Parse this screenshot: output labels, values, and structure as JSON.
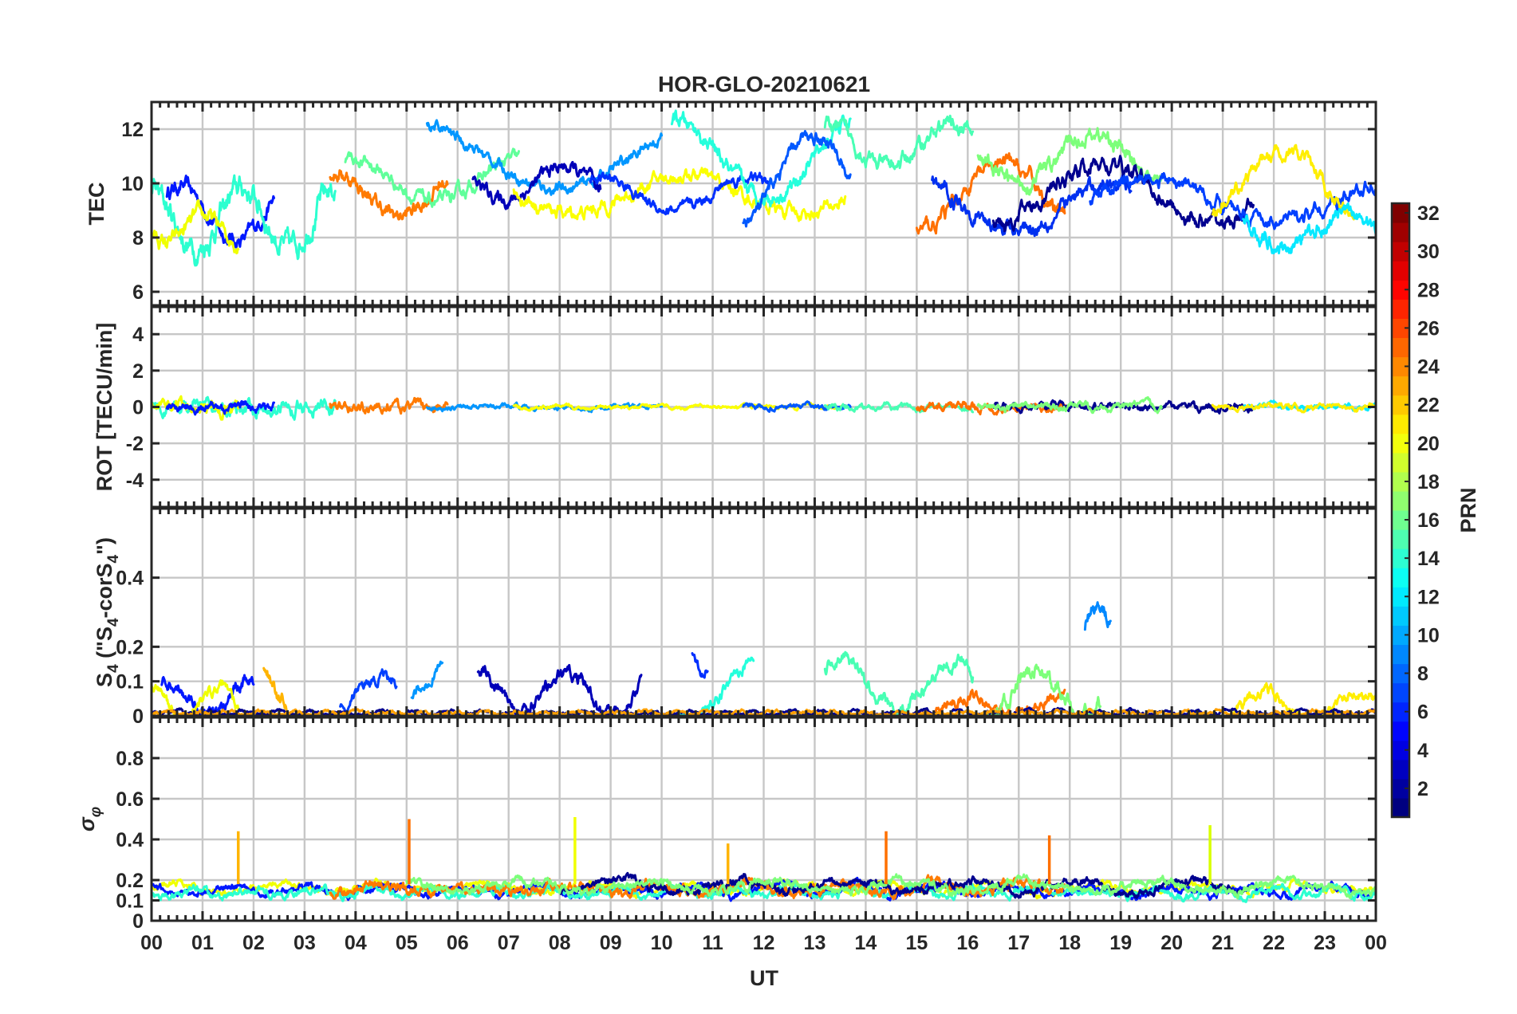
{
  "chart_data": {
    "type": "line",
    "title": "HOR-GLO-20210621",
    "xlabel": "UT",
    "x_range": [
      0,
      24
    ],
    "x_tick_labels": [
      "00",
      "01",
      "02",
      "03",
      "04",
      "05",
      "06",
      "07",
      "08",
      "09",
      "10",
      "11",
      "12",
      "13",
      "14",
      "15",
      "16",
      "17",
      "18",
      "19",
      "20",
      "21",
      "22",
      "23",
      "00"
    ],
    "colorbar": {
      "label": "PRN",
      "range": [
        1,
        32
      ],
      "tick_labels": [
        "2",
        "4",
        "6",
        "8",
        "10",
        "12",
        "14",
        "16",
        "18",
        "20",
        "22",
        "24",
        "26",
        "28",
        "30",
        "32"
      ],
      "colormap": "jet"
    },
    "panels": [
      {
        "id": "tec",
        "ylabel": "TEC",
        "ylim": [
          5.5,
          13
        ],
        "y_ticks": [
          6,
          8,
          10,
          12
        ],
        "y_tick_labels": [
          "6",
          "8",
          "10",
          "12"
        ],
        "series": [
          {
            "prn": 3,
            "color": "#0018ff",
            "t_start": 0.3,
            "t_end": 2.4,
            "base": 8.9,
            "amp": 1.0,
            "noise": 0.35,
            "freq": 0.9
          },
          {
            "prn": 14,
            "color": "#2cffd0",
            "t_start": 0.0,
            "t_end": 3.6,
            "base": 8.7,
            "amp": 1.1,
            "noise": 0.55,
            "freq": 1.1
          },
          {
            "prn": 20,
            "color": "#f0ff00",
            "t_start": 0.0,
            "t_end": 1.7,
            "base": 8.3,
            "amp": 0.5,
            "noise": 0.35,
            "freq": 1.4
          },
          {
            "prn": 24,
            "color": "#ff7a00",
            "t_start": 3.5,
            "t_end": 5.8,
            "base": 9.6,
            "amp": 0.8,
            "noise": 0.35,
            "freq": 0.8
          },
          {
            "prn": 16,
            "color": "#60ff9a",
            "t_start": 3.8,
            "t_end": 7.2,
            "base": 10.1,
            "amp": 0.8,
            "noise": 0.3,
            "freq": 0.6
          },
          {
            "prn": 9,
            "color": "#0096ff",
            "t_start": 5.4,
            "t_end": 10.0,
            "base": 11.0,
            "amp": 1.2,
            "noise": 0.25,
            "freq": 0.35
          },
          {
            "prn": 2,
            "color": "#0000b8",
            "t_start": 6.3,
            "t_end": 8.8,
            "base": 10.0,
            "amp": 0.6,
            "noise": 0.3,
            "freq": 0.9
          },
          {
            "prn": 19,
            "color": "#fbff00",
            "t_start": 7.1,
            "t_end": 13.6,
            "base": 9.6,
            "amp": 0.7,
            "noise": 0.3,
            "freq": 0.45
          },
          {
            "prn": 5,
            "color": "#0030ff",
            "t_start": 8.6,
            "t_end": 12.1,
            "base": 9.6,
            "amp": 0.6,
            "noise": 0.25,
            "freq": 0.7
          },
          {
            "prn": 13,
            "color": "#24ffdc",
            "t_start": 10.2,
            "t_end": 13.7,
            "base": 10.9,
            "amp": 1.4,
            "noise": 0.35,
            "freq": 0.55
          },
          {
            "prn": 7,
            "color": "#0058ff",
            "t_start": 11.6,
            "t_end": 13.7,
            "base": 10.2,
            "amp": 1.6,
            "noise": 0.3,
            "freq": 0.7
          },
          {
            "prn": 15,
            "color": "#48ffb4",
            "t_start": 13.2,
            "t_end": 16.1,
            "base": 11.4,
            "amp": 0.8,
            "noise": 0.35,
            "freq": 0.8
          },
          {
            "prn": 24,
            "color": "#ff7000",
            "t_start": 15.0,
            "t_end": 17.9,
            "base": 9.5,
            "amp": 1.2,
            "noise": 0.35,
            "freq": 0.6
          },
          {
            "prn": 4,
            "color": "#0030f0",
            "t_start": 15.3,
            "t_end": 19.2,
            "base": 9.2,
            "amp": 0.9,
            "noise": 0.35,
            "freq": 0.5
          },
          {
            "prn": 17,
            "color": "#7cff7a",
            "t_start": 16.2,
            "t_end": 19.8,
            "base": 10.9,
            "amp": 0.9,
            "noise": 0.35,
            "freq": 0.7
          },
          {
            "prn": 1,
            "color": "#00008f",
            "t_start": 16.5,
            "t_end": 21.6,
            "base": 9.6,
            "amp": 1.1,
            "noise": 0.35,
            "freq": 0.45
          },
          {
            "prn": 6,
            "color": "#0040ff",
            "t_start": 18.4,
            "t_end": 24.0,
            "base": 9.4,
            "amp": 0.8,
            "noise": 0.3,
            "freq": 0.4
          },
          {
            "prn": 20,
            "color": "#ffee00",
            "t_start": 20.8,
            "t_end": 23.6,
            "base": 9.9,
            "amp": 1.3,
            "noise": 0.3,
            "freq": 0.6
          },
          {
            "prn": 12,
            "color": "#08e8ff",
            "t_start": 21.4,
            "t_end": 24.0,
            "base": 8.3,
            "amp": 0.6,
            "noise": 0.35,
            "freq": 0.8
          }
        ]
      },
      {
        "id": "rot",
        "ylabel": "ROT [TECU/min]",
        "ylim": [
          -5.5,
          5.5
        ],
        "y_ticks": [
          -4,
          -2,
          0,
          2,
          4
        ],
        "y_tick_labels": [
          "-4",
          "-2",
          "0",
          "2",
          "4"
        ],
        "series": [
          {
            "prn": 14,
            "color": "#2cffd0",
            "t_start": 0.0,
            "t_end": 3.6,
            "base": 0.0,
            "amp": 0.05,
            "noise": 0.45,
            "freq": 2.0
          },
          {
            "prn": 20,
            "color": "#f0ff00",
            "t_start": 0.0,
            "t_end": 1.7,
            "base": 0.0,
            "amp": 0.05,
            "noise": 0.45,
            "freq": 2.0
          },
          {
            "prn": 3,
            "color": "#0018ff",
            "t_start": 0.3,
            "t_end": 2.4,
            "base": 0.0,
            "amp": 0.05,
            "noise": 0.3,
            "freq": 2.0
          },
          {
            "prn": 24,
            "color": "#ff7a00",
            "t_start": 3.5,
            "t_end": 5.8,
            "base": 0.0,
            "amp": 0.05,
            "noise": 0.35,
            "freq": 2.0
          },
          {
            "prn": 9,
            "color": "#0096ff",
            "t_start": 5.4,
            "t_end": 10.0,
            "base": 0.0,
            "amp": 0.05,
            "noise": 0.15,
            "freq": 2.0
          },
          {
            "prn": 19,
            "color": "#fbff00",
            "t_start": 7.1,
            "t_end": 13.6,
            "base": 0.0,
            "amp": 0.05,
            "noise": 0.12,
            "freq": 2.0
          },
          {
            "prn": 7,
            "color": "#0058ff",
            "t_start": 11.6,
            "t_end": 13.7,
            "base": 0.0,
            "amp": 0.05,
            "noise": 0.18,
            "freq": 2.0
          },
          {
            "prn": 15,
            "color": "#48ffb4",
            "t_start": 13.2,
            "t_end": 16.1,
            "base": 0.0,
            "amp": 0.05,
            "noise": 0.2,
            "freq": 2.0
          },
          {
            "prn": 24,
            "color": "#ff7000",
            "t_start": 15.0,
            "t_end": 17.9,
            "base": 0.0,
            "amp": 0.05,
            "noise": 0.25,
            "freq": 2.0
          },
          {
            "prn": 1,
            "color": "#00008f",
            "t_start": 16.5,
            "t_end": 21.6,
            "base": 0.0,
            "amp": 0.05,
            "noise": 0.25,
            "freq": 2.0
          },
          {
            "prn": 17,
            "color": "#7cff7a",
            "t_start": 16.2,
            "t_end": 19.8,
            "base": 0.0,
            "amp": 0.05,
            "noise": 0.25,
            "freq": 2.0
          },
          {
            "prn": 12,
            "color": "#08e8ff",
            "t_start": 21.4,
            "t_end": 24.0,
            "base": 0.0,
            "amp": 0.05,
            "noise": 0.18,
            "freq": 2.0
          },
          {
            "prn": 20,
            "color": "#ffee00",
            "t_start": 20.8,
            "t_end": 24.0,
            "base": 0.0,
            "amp": 0.05,
            "noise": 0.18,
            "freq": 2.0
          }
        ]
      },
      {
        "id": "s4",
        "ylabel": "S4 (\"S4-corS4\")",
        "ylim": [
          0,
          0.6
        ],
        "y_ticks": [
          0,
          0.1,
          0.2,
          0.4
        ],
        "y_tick_labels": [
          "0",
          "0.1",
          "0.2",
          "0.4"
        ],
        "series": [
          {
            "prn": 3,
            "color": "#0018ff",
            "t_start": 0.2,
            "t_end": 2.0,
            "base": 0.05,
            "amp": 0.05,
            "noise": 0.025,
            "freq": 1.3
          },
          {
            "prn": 20,
            "color": "#f0ff00",
            "t_start": 0.0,
            "t_end": 1.7,
            "base": 0.04,
            "amp": 0.04,
            "noise": 0.02,
            "freq": 1.5
          },
          {
            "prn": 22,
            "color": "#ffb400",
            "t_start": 2.2,
            "t_end": 2.9,
            "base": 0.07,
            "amp": 0.08,
            "noise": 0.03,
            "freq": 1.6
          },
          {
            "prn": 6,
            "color": "#0040ff",
            "t_start": 3.7,
            "t_end": 4.8,
            "base": 0.06,
            "amp": 0.05,
            "noise": 0.02,
            "freq": 1.1
          },
          {
            "prn": 9,
            "color": "#0096ff",
            "t_start": 5.1,
            "t_end": 5.7,
            "base": 0.12,
            "amp": 0.1,
            "noise": 0.02,
            "freq": 0.7
          },
          {
            "prn": 2,
            "color": "#0000b8",
            "t_start": 6.4,
            "t_end": 9.6,
            "base": 0.07,
            "amp": 0.05,
            "noise": 0.025,
            "freq": 1.2
          },
          {
            "prn": 13,
            "color": "#24ffdc",
            "t_start": 10.2,
            "t_end": 11.8,
            "base": 0.08,
            "amp": 0.1,
            "noise": 0.02,
            "freq": 0.6
          },
          {
            "prn": 5,
            "color": "#0030ff",
            "t_start": 10.6,
            "t_end": 10.9,
            "base": 0.18,
            "amp": 0.06,
            "noise": 0.02,
            "freq": 2.0
          },
          {
            "prn": 15,
            "color": "#48ffb4",
            "t_start": 13.2,
            "t_end": 16.1,
            "base": 0.09,
            "amp": 0.07,
            "noise": 0.025,
            "freq": 0.9
          },
          {
            "prn": 24,
            "color": "#ff7000",
            "t_start": 15.0,
            "t_end": 17.9,
            "base": 0.03,
            "amp": 0.03,
            "noise": 0.02,
            "freq": 1.1
          },
          {
            "prn": 17,
            "color": "#7cff7a",
            "t_start": 16.2,
            "t_end": 18.6,
            "base": 0.06,
            "amp": 0.07,
            "noise": 0.03,
            "freq": 1.1
          },
          {
            "prn": 10,
            "color": "#0088ff",
            "t_start": 18.3,
            "t_end": 18.8,
            "base": 0.12,
            "amp": 0.2,
            "noise": 0.03,
            "freq": 1.0
          },
          {
            "prn": 20,
            "color": "#ffee00",
            "t_start": 21.2,
            "t_end": 24.0,
            "base": 0.03,
            "amp": 0.04,
            "noise": 0.02,
            "freq": 1.1
          },
          {
            "prn": 1,
            "color": "#00008f",
            "t_start": 0.0,
            "t_end": 24.0,
            "base": 0.008,
            "amp": 0.005,
            "noise": 0.006,
            "freq": 3.0
          },
          {
            "prn": 22,
            "color": "#ffa000",
            "t_start": 0.0,
            "t_end": 24.0,
            "base": 0.008,
            "amp": 0.005,
            "noise": 0.006,
            "freq": 3.2
          }
        ]
      },
      {
        "id": "sigma_phi",
        "ylabel": "σφ",
        "ylim": [
          0,
          1.0
        ],
        "y_ticks": [
          0,
          0.1,
          0.2,
          0.4,
          0.6,
          0.8
        ],
        "y_tick_labels": [
          "0",
          "0.1",
          "0.2",
          "0.4",
          "0.6",
          "0.8"
        ],
        "series": [
          {
            "prn": 20,
            "color": "#f0ff00",
            "t_start": 0.0,
            "t_end": 24.0,
            "base": 0.16,
            "amp": 0.02,
            "noise": 0.02,
            "freq": 1.0
          },
          {
            "prn": 3,
            "color": "#0018ff",
            "t_start": 0.0,
            "t_end": 24.0,
            "base": 0.15,
            "amp": 0.02,
            "noise": 0.022,
            "freq": 1.3
          },
          {
            "prn": 14,
            "color": "#2cffd0",
            "t_start": 0.0,
            "t_end": 24.0,
            "base": 0.14,
            "amp": 0.02,
            "noise": 0.022,
            "freq": 1.7
          },
          {
            "prn": 24,
            "color": "#ff7a00",
            "t_start": 3.5,
            "t_end": 17.9,
            "base": 0.16,
            "amp": 0.02,
            "noise": 0.03,
            "freq": 1.1
          },
          {
            "prn": 1,
            "color": "#00008f",
            "t_start": 8.0,
            "t_end": 21.5,
            "base": 0.17,
            "amp": 0.03,
            "noise": 0.025,
            "freq": 0.9
          },
          {
            "prn": 17,
            "color": "#7cff7a",
            "t_start": 5.0,
            "t_end": 24.0,
            "base": 0.17,
            "amp": 0.03,
            "noise": 0.025,
            "freq": 0.8
          }
        ],
        "spikes": [
          {
            "t": 1.7,
            "value": 0.44,
            "color": "#ffb400"
          },
          {
            "t": 5.05,
            "value": 0.5,
            "color": "#ff7000"
          },
          {
            "t": 8.3,
            "value": 0.51,
            "color": "#f0ff00"
          },
          {
            "t": 11.3,
            "value": 0.38,
            "color": "#ffb400"
          },
          {
            "t": 14.4,
            "value": 0.44,
            "color": "#ff7000"
          },
          {
            "t": 17.6,
            "value": 0.42,
            "color": "#ff7000"
          },
          {
            "t": 20.75,
            "value": 0.47,
            "color": "#d8ff00"
          }
        ]
      }
    ]
  }
}
